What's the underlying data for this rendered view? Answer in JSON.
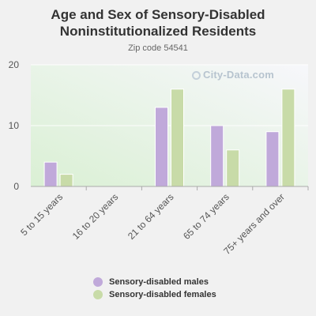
{
  "chart_data": {
    "type": "bar",
    "title": "Age and Sex of Sensory-Disabled Noninstitutionalized Residents",
    "subtitle": "Zip code 54541",
    "categories": [
      "5 to 15 years",
      "16 to 20 years",
      "21 to 64 years",
      "65 to 74 years",
      "75+ years and over"
    ],
    "series": [
      {
        "name": "Sensory-disabled males",
        "values": [
          4,
          0,
          13,
          10,
          9
        ],
        "color": "#c0a9da"
      },
      {
        "name": "Sensory-disabled females",
        "values": [
          2,
          0,
          16,
          6,
          16
        ],
        "color": "#c8dba8"
      }
    ],
    "yticks": [
      0,
      10,
      20
    ],
    "ylim": [
      0,
      20
    ],
    "legend_position": "bottom",
    "grid": true
  },
  "watermark": "City-Data.com"
}
